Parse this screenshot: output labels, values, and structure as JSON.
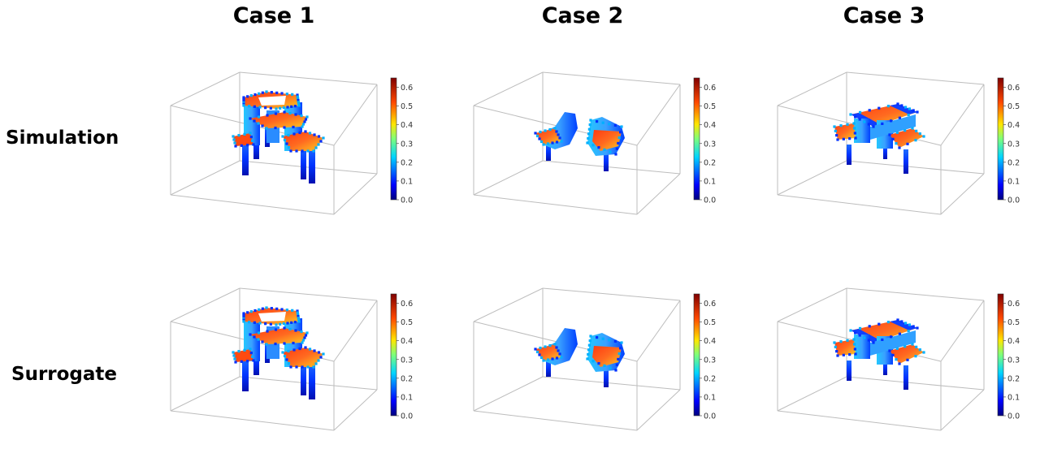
{
  "columns": [
    "Case 1",
    "Case 2",
    "Case 3"
  ],
  "rows": [
    "Simulation",
    "Surrogate"
  ],
  "colorbar": {
    "colormap": "jet",
    "min": 0.0,
    "max": 0.65,
    "ticks": [
      "0.0",
      "0.1",
      "0.2",
      "0.3",
      "0.4",
      "0.5",
      "0.6"
    ]
  },
  "panels": [
    {
      "row": "Simulation",
      "column": "Case 1",
      "shape": "case1-structure"
    },
    {
      "row": "Simulation",
      "column": "Case 2",
      "shape": "case2-structure"
    },
    {
      "row": "Simulation",
      "column": "Case 3",
      "shape": "case3-structure"
    },
    {
      "row": "Surrogate",
      "column": "Case 1",
      "shape": "case1-structure"
    },
    {
      "row": "Surrogate",
      "column": "Case 2",
      "shape": "case2-structure"
    },
    {
      "row": "Surrogate",
      "column": "Case 3",
      "shape": "case3-structure"
    }
  ]
}
